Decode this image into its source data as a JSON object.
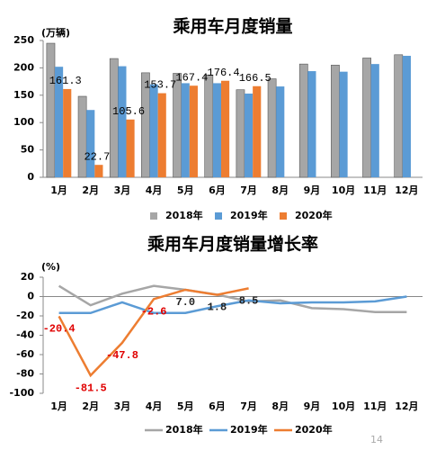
{
  "chart_data": [
    {
      "type": "bar",
      "title": "乘用车月度销量",
      "y_label": "(万辆)",
      "categories": [
        "1月",
        "2月",
        "3月",
        "4月",
        "5月",
        "6月",
        "7月",
        "8月",
        "9月",
        "10月",
        "11月",
        "12月"
      ],
      "series": [
        {
          "name": "2018年",
          "color": "#a6a6a6",
          "values": [
            245,
            148,
            217,
            191,
            190,
            187,
            160,
            180,
            207,
            205,
            218,
            224
          ]
        },
        {
          "name": "2019年",
          "color": "#5b9bd5",
          "values": [
            202,
            123,
            203,
            170,
            172,
            172,
            153,
            166,
            194,
            193,
            207,
            222
          ]
        },
        {
          "name": "2020年",
          "color": "#ed7d31",
          "values": [
            161.3,
            22.7,
            105.6,
            153.7,
            167.4,
            176.4,
            166.5,
            null,
            null,
            null,
            null,
            null
          ]
        }
      ],
      "ylim": [
        0,
        250
      ],
      "yticks": [
        0,
        50,
        100,
        150,
        200,
        250
      ],
      "grid": false,
      "labeled_series": 2
    },
    {
      "type": "line",
      "title": "乘用车月度销量增长率",
      "y_label": "(%)",
      "categories": [
        "1月",
        "2月",
        "3月",
        "4月",
        "5月",
        "6月",
        "7月",
        "8月",
        "9月",
        "10月",
        "11月",
        "12月"
      ],
      "series": [
        {
          "name": "2018年",
          "color": "#a6a6a6",
          "values": [
            11,
            -9,
            3,
            11,
            7,
            2,
            -5,
            -4,
            -12,
            -13,
            -16,
            -16
          ]
        },
        {
          "name": "2019年",
          "color": "#5b9bd5",
          "values": [
            -17,
            -17,
            -6,
            -17,
            -17,
            -10,
            -4,
            -7,
            -6,
            -6,
            -5,
            0
          ]
        },
        {
          "name": "2020年",
          "color": "#ed7d31",
          "values": [
            -20.4,
            -81.5,
            -47.8,
            -2.6,
            7.0,
            1.8,
            8.5,
            null,
            null,
            null,
            null,
            null
          ],
          "value_labels": [
            "-20.4",
            "-81.5",
            "-47.8",
            "-2.6",
            "7.0",
            "1.8",
            "8.5",
            null,
            null,
            null,
            null,
            null
          ]
        }
      ],
      "ylim": [
        -100,
        20
      ],
      "yticks": [
        -100,
        -80,
        -60,
        -40,
        -20,
        0,
        20
      ],
      "grid": false,
      "labeled_series": 2
    }
  ],
  "page_number": "14"
}
